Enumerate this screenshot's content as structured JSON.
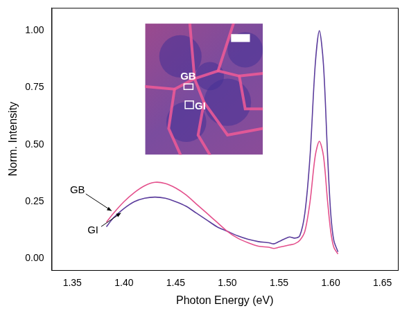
{
  "chart_data": {
    "type": "line",
    "x_label": "Photon Energy (eV)",
    "y_label": "Norm. Intensity",
    "xlim": [
      1.33,
      1.665
    ],
    "xticks": [
      1.35,
      {
        "value": 1.4,
        "label": "1.40"
      },
      1.45,
      {
        "value": 1.5,
        "label": "1.50"
      },
      1.55,
      {
        "value": 1.6,
        "label": "1.60"
      },
      1.65
    ],
    "ylim": [
      -0.05,
      1.1
    ],
    "yticks": [
      {
        "value": 0,
        "label": "0.00"
      },
      0.25,
      {
        "value": 0.5,
        "label": "0.50"
      },
      0.75,
      {
        "value": 1,
        "label": "1.00"
      }
    ],
    "grid": false,
    "x": [
      1.383,
      1.39,
      1.4,
      1.41,
      1.42,
      1.43,
      1.44,
      1.45,
      1.46,
      1.47,
      1.48,
      1.49,
      1.5,
      1.51,
      1.52,
      1.53,
      1.54,
      1.545,
      1.55,
      1.56,
      1.565,
      1.57,
      1.575,
      1.58,
      1.585,
      1.589,
      1.593,
      1.597,
      1.6,
      1.603,
      1.607
    ],
    "series": [
      {
        "name": "GB",
        "color": "#e4508c",
        "values": [
          0.16,
          0.2,
          0.25,
          0.29,
          0.32,
          0.335,
          0.33,
          0.31,
          0.28,
          0.24,
          0.2,
          0.16,
          0.12,
          0.09,
          0.07,
          0.055,
          0.05,
          0.045,
          0.05,
          0.06,
          0.065,
          0.08,
          0.12,
          0.25,
          0.45,
          0.515,
          0.45,
          0.25,
          0.12,
          0.05,
          0.02
        ]
      },
      {
        "name": "GI",
        "color": "#5b3c9c",
        "values": [
          0.14,
          0.18,
          0.22,
          0.25,
          0.265,
          0.27,
          0.265,
          0.25,
          0.23,
          0.2,
          0.17,
          0.14,
          0.12,
          0.1,
          0.085,
          0.075,
          0.07,
          0.065,
          0.075,
          0.095,
          0.09,
          0.1,
          0.2,
          0.45,
          0.85,
          1.0,
          0.85,
          0.45,
          0.2,
          0.08,
          0.03
        ]
      }
    ],
    "annotations": [
      {
        "text": "GB",
        "x": 1.355,
        "y": 0.3,
        "arrow_x": 1.388,
        "arrow_y": 0.21
      },
      {
        "text": "GI",
        "x": 1.37,
        "y": 0.125,
        "arrow_x": 1.397,
        "arrow_y": 0.2
      }
    ],
    "inset": {
      "labels": [
        "GB",
        "GI"
      ]
    }
  }
}
